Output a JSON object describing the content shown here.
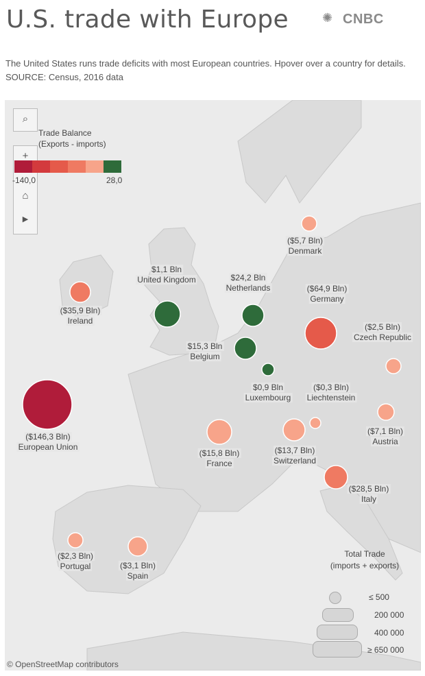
{
  "header": {
    "title": "U.S. trade with Europe",
    "logo_text": "CNBC",
    "subtitle": "The United States runs trade deficits with most European countries. Hpover over a country for details. SOURCE: Census, 2016 data"
  },
  "legend": {
    "color_title": "Trade Balance\n(Exports - imports)",
    "color_min": "-140,0",
    "color_max": "28,0",
    "color_steps": [
      "#b01c3a",
      "#d33a3d",
      "#e55a4a",
      "#ef7a62",
      "#f7a48a",
      "#2e6b3a"
    ],
    "size_title": "Total Trade\n(imports + exports)",
    "size_steps": [
      "≤ 500",
      "200 000",
      "400 000",
      "≥ 650 000"
    ]
  },
  "chart_data": {
    "type": "map",
    "metric_color": "Trade Balance (Exports - imports)",
    "metric_size": "Total Trade (imports + exports)",
    "points": [
      {
        "name": "Denmark",
        "value_label": "($5,7 Bln)",
        "balance": -5.7,
        "color": "#f7a48a"
      },
      {
        "name": "United Kingdom",
        "value_label": "$1,1 Bln",
        "balance": 1.1,
        "color": "#2e6b3a"
      },
      {
        "name": "Netherlands",
        "value_label": "$24,2 Bln",
        "balance": 24.2,
        "color": "#2e6b3a"
      },
      {
        "name": "Germany",
        "value_label": "($64,9 Bln)",
        "balance": -64.9,
        "color": "#e55a4a"
      },
      {
        "name": "Ireland",
        "value_label": "($35,9 Bln)",
        "balance": -35.9,
        "color": "#ef7a62"
      },
      {
        "name": "Belgium",
        "value_label": "$15,3 Bln",
        "balance": 15.3,
        "color": "#2e6b3a"
      },
      {
        "name": "Czech Republic",
        "value_label": "($2,5 Bln)",
        "balance": -2.5,
        "color": "#f7a48a"
      },
      {
        "name": "Luxembourg",
        "value_label": "$0,9 Bln",
        "balance": 0.9,
        "color": "#2e6b3a"
      },
      {
        "name": "Liechtenstein",
        "value_label": "($0,3 Bln)",
        "balance": -0.3,
        "color": "#f7a48a"
      },
      {
        "name": "European Union",
        "value_label": "($146,3 Bln)",
        "balance": -146.3,
        "color": "#b01c3a"
      },
      {
        "name": "France",
        "value_label": "($15,8 Bln)",
        "balance": -15.8,
        "color": "#f7a48a"
      },
      {
        "name": "Switzerland",
        "value_label": "($13,7 Bln)",
        "balance": -13.7,
        "color": "#f7a48a"
      },
      {
        "name": "Austria",
        "value_label": "($7,1 Bln)",
        "balance": -7.1,
        "color": "#f7a48a"
      },
      {
        "name": "Italy",
        "value_label": "($28,5 Bln)",
        "balance": -28.5,
        "color": "#ef7a62"
      },
      {
        "name": "Portugal",
        "value_label": "($2,3 Bln)",
        "balance": -2.3,
        "color": "#f7a48a"
      },
      {
        "name": "Spain",
        "value_label": "($3,1 Bln)",
        "balance": -3.1,
        "color": "#f7a48a"
      }
    ]
  },
  "footer": {
    "credit": "© OpenStreetMap contributors"
  }
}
